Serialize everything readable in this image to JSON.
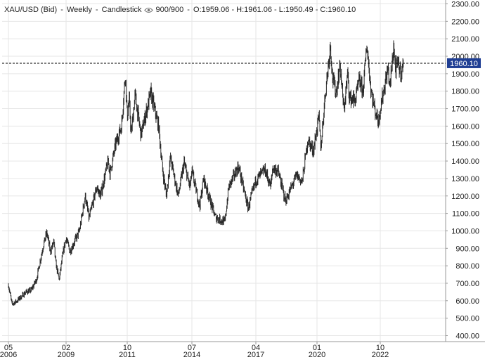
{
  "header": {
    "symbol": "XAU/USD (Bid)",
    "interval": "Weekly",
    "chart_style": "Candlestick",
    "bars": "900/900",
    "ohlc": "O:1959.06 - H:1961.06 - L:1950.49 - C:1960.10"
  },
  "colors": {
    "candle": "#2b2b2b",
    "grid": "#e6e6e6",
    "price_line": "#000000",
    "price_tag_bg": "#1f3e93",
    "price_tag_text": "#ffffff"
  },
  "icons": {
    "visibility": "eye-icon"
  },
  "chart_data": {
    "type": "candlestick",
    "title": "XAU/USD (Bid) - Weekly - Candlestick",
    "ylim": [
      380,
      2310
    ],
    "y_ticks": [
      400,
      500,
      600,
      700,
      800,
      900,
      1000,
      1100,
      1200,
      1300,
      1400,
      1500,
      1600,
      1700,
      1800,
      1900,
      2000,
      2100,
      2200,
      2300
    ],
    "y_tick_labels": [
      "400.00",
      "500.00",
      "600.00",
      "700.00",
      "800.00",
      "900.00",
      "1000.00",
      "1100.00",
      "1200.00",
      "1300.00",
      "1400.00",
      "1500.00",
      "1600.00",
      "1700.00",
      "1800.00",
      "1900.00",
      "2000.00",
      "2100.00",
      "2200.00",
      "2300.00"
    ],
    "x_ticks": [
      {
        "date": "2006-05",
        "month": "05",
        "year": "2006"
      },
      {
        "date": "2009-02",
        "month": "02",
        "year": "2009"
      },
      {
        "date": "2011-10",
        "month": "10",
        "year": "2011"
      },
      {
        "date": "2014-07",
        "month": "07",
        "year": "2014"
      },
      {
        "date": "2017-04",
        "month": "04",
        "year": "2017"
      },
      {
        "date": "2020-01",
        "month": "01",
        "year": "2020"
      },
      {
        "date": "2022-10",
        "month": "10",
        "year": "2022"
      }
    ],
    "last_price": 1960.1,
    "last_price_label": "1960.10",
    "grid": true,
    "series_points": [
      {
        "date": "2006-05",
        "price": 690
      },
      {
        "date": "2006-07",
        "price": 580
      },
      {
        "date": "2006-10",
        "price": 600
      },
      {
        "date": "2007-03",
        "price": 650
      },
      {
        "date": "2007-06",
        "price": 660
      },
      {
        "date": "2007-09",
        "price": 720
      },
      {
        "date": "2007-11",
        "price": 820
      },
      {
        "date": "2008-01",
        "price": 920
      },
      {
        "date": "2008-03",
        "price": 990
      },
      {
        "date": "2008-05",
        "price": 880
      },
      {
        "date": "2008-07",
        "price": 940
      },
      {
        "date": "2008-08",
        "price": 820
      },
      {
        "date": "2008-10",
        "price": 720
      },
      {
        "date": "2008-12",
        "price": 860
      },
      {
        "date": "2009-02",
        "price": 960
      },
      {
        "date": "2009-04",
        "price": 880
      },
      {
        "date": "2009-06",
        "price": 930
      },
      {
        "date": "2009-09",
        "price": 1000
      },
      {
        "date": "2009-12",
        "price": 1200
      },
      {
        "date": "2010-02",
        "price": 1070
      },
      {
        "date": "2010-06",
        "price": 1250
      },
      {
        "date": "2010-08",
        "price": 1200
      },
      {
        "date": "2010-12",
        "price": 1400
      },
      {
        "date": "2011-01",
        "price": 1330
      },
      {
        "date": "2011-04",
        "price": 1500
      },
      {
        "date": "2011-07",
        "price": 1600
      },
      {
        "date": "2011-09",
        "price": 1900
      },
      {
        "date": "2011-10",
        "price": 1650
      },
      {
        "date": "2011-11",
        "price": 1750
      },
      {
        "date": "2011-12",
        "price": 1550
      },
      {
        "date": "2012-02",
        "price": 1780
      },
      {
        "date": "2012-05",
        "price": 1550
      },
      {
        "date": "2012-10",
        "price": 1790
      },
      {
        "date": "2013-02",
        "price": 1600
      },
      {
        "date": "2013-04",
        "price": 1350
      },
      {
        "date": "2013-06",
        "price": 1200
      },
      {
        "date": "2013-08",
        "price": 1420
      },
      {
        "date": "2013-12",
        "price": 1200
      },
      {
        "date": "2014-03",
        "price": 1390
      },
      {
        "date": "2014-06",
        "price": 1250
      },
      {
        "date": "2014-07",
        "price": 1340
      },
      {
        "date": "2014-11",
        "price": 1140
      },
      {
        "date": "2015-01",
        "price": 1300
      },
      {
        "date": "2015-07",
        "price": 1080
      },
      {
        "date": "2015-12",
        "price": 1050
      },
      {
        "date": "2016-02",
        "price": 1250
      },
      {
        "date": "2016-07",
        "price": 1370
      },
      {
        "date": "2016-12",
        "price": 1130
      },
      {
        "date": "2017-04",
        "price": 1290
      },
      {
        "date": "2017-09",
        "price": 1350
      },
      {
        "date": "2017-12",
        "price": 1250
      },
      {
        "date": "2018-01",
        "price": 1360
      },
      {
        "date": "2018-04",
        "price": 1340
      },
      {
        "date": "2018-08",
        "price": 1170
      },
      {
        "date": "2019-02",
        "price": 1320
      },
      {
        "date": "2019-05",
        "price": 1280
      },
      {
        "date": "2019-08",
        "price": 1520
      },
      {
        "date": "2019-11",
        "price": 1460
      },
      {
        "date": "2020-02",
        "price": 1650
      },
      {
        "date": "2020-03",
        "price": 1470
      },
      {
        "date": "2020-05",
        "price": 1750
      },
      {
        "date": "2020-08",
        "price": 2070
      },
      {
        "date": "2020-09",
        "price": 1880
      },
      {
        "date": "2020-11",
        "price": 1790
      },
      {
        "date": "2021-01",
        "price": 1950
      },
      {
        "date": "2021-03",
        "price": 1690
      },
      {
        "date": "2021-05",
        "price": 1900
      },
      {
        "date": "2021-06",
        "price": 1760
      },
      {
        "date": "2021-09",
        "price": 1750
      },
      {
        "date": "2021-11",
        "price": 1860
      },
      {
        "date": "2022-01",
        "price": 1800
      },
      {
        "date": "2022-03",
        "price": 2070
      },
      {
        "date": "2022-05",
        "price": 1820
      },
      {
        "date": "2022-07",
        "price": 1700
      },
      {
        "date": "2022-09",
        "price": 1630
      },
      {
        "date": "2022-11",
        "price": 1760
      },
      {
        "date": "2023-02",
        "price": 1930
      },
      {
        "date": "2023-03",
        "price": 1820
      },
      {
        "date": "2023-05",
        "price": 2060
      },
      {
        "date": "2023-06",
        "price": 1910
      },
      {
        "date": "2023-07",
        "price": 1960
      },
      {
        "date": "2023-09",
        "price": 1900
      },
      {
        "date": "2023-10",
        "price": 1960.1
      }
    ]
  }
}
